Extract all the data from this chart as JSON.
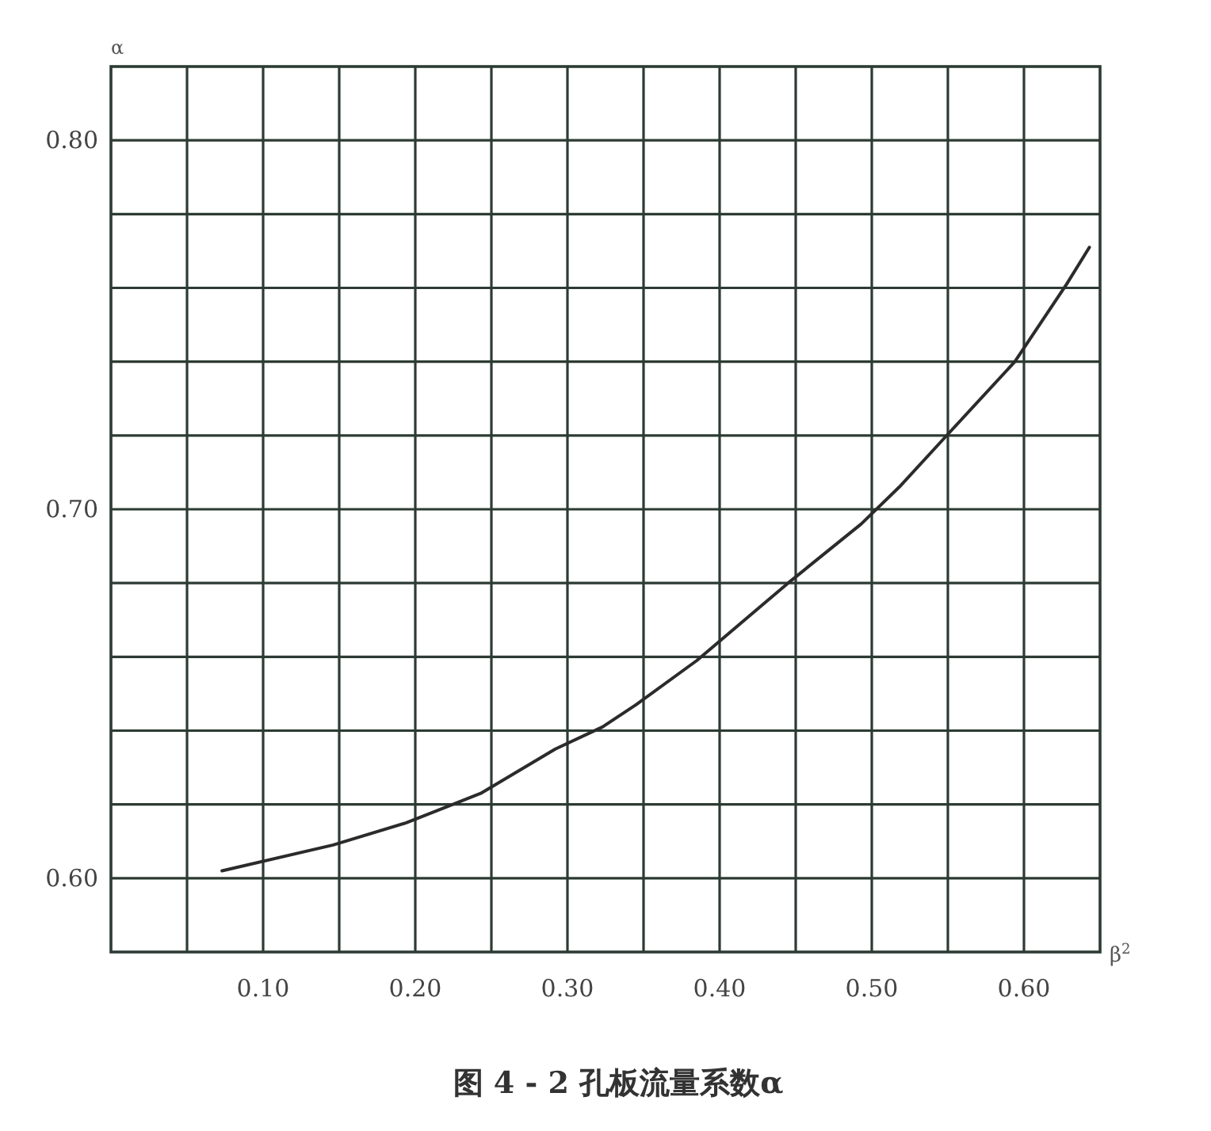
{
  "chart_data": {
    "type": "line",
    "title": "图 4 - 2  孔板流量系数α",
    "xlabel": "β$^{2}$",
    "ylabel": "α",
    "color": "#2b2b2b",
    "grid": true,
    "xlim": [
      0,
      0.65
    ],
    "ylim": [
      0.58,
      0.82
    ],
    "xticks": [
      {
        "value": 0.05,
        "label": null
      },
      {
        "value": 0.1,
        "label": "0.10"
      },
      {
        "value": 0.15,
        "label": null
      },
      {
        "value": 0.2,
        "label": "0.20"
      },
      {
        "value": 0.25,
        "label": null
      },
      {
        "value": 0.3,
        "label": "0.30"
      },
      {
        "value": 0.35,
        "label": null
      },
      {
        "value": 0.4,
        "label": "0.40"
      },
      {
        "value": 0.45,
        "label": null
      },
      {
        "value": 0.5,
        "label": "0.50"
      },
      {
        "value": 0.55,
        "label": null
      },
      {
        "value": 0.6,
        "label": "0.60"
      }
    ],
    "yticks": [
      {
        "value": 0.6,
        "label": "0.60"
      },
      {
        "value": 0.62,
        "label": null
      },
      {
        "value": 0.64,
        "label": null
      },
      {
        "value": 0.66,
        "label": null
      },
      {
        "value": 0.68,
        "label": null
      },
      {
        "value": 0.7,
        "label": "0.70"
      },
      {
        "value": 0.72,
        "label": null
      },
      {
        "value": 0.74,
        "label": null
      },
      {
        "value": 0.76,
        "label": null
      },
      {
        "value": 0.78,
        "label": null
      },
      {
        "value": 0.8,
        "label": "0.80"
      }
    ],
    "x": [
      0.073,
      0.146,
      0.194,
      0.243,
      0.292,
      0.323,
      0.345,
      0.385,
      0.445,
      0.493,
      0.518,
      0.547,
      0.594,
      0.628,
      0.643
    ],
    "values": [
      0.602,
      0.609,
      0.615,
      0.623,
      0.635,
      0.641,
      0.647,
      0.659,
      0.68,
      0.696,
      0.706,
      0.719,
      0.74,
      0.761,
      0.771
    ]
  }
}
